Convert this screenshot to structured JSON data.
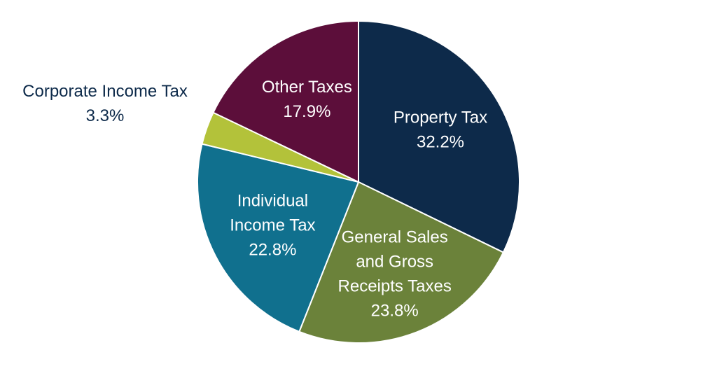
{
  "chart_data": {
    "type": "pie",
    "title": "",
    "slices": [
      {
        "label_lines": [
          "Property Tax"
        ],
        "value": 32.2,
        "display": "32.2%",
        "color": "#0d2a4a"
      },
      {
        "label_lines": [
          "General Sales",
          "and Gross",
          "Receipts Taxes"
        ],
        "value": 23.8,
        "display": "23.8%",
        "color": "#6b823a"
      },
      {
        "label_lines": [
          "Individual",
          "Income Tax"
        ],
        "value": 22.8,
        "display": "22.8%",
        "color": "#10708e"
      },
      {
        "label_lines": [
          "Corporate Income Tax"
        ],
        "value": 3.3,
        "display": "3.3%",
        "color": "#b3c23a",
        "label_outside": true
      },
      {
        "label_lines": [
          "Other Taxes"
        ],
        "value": 17.9,
        "display": "17.9%",
        "color": "#5c0e3a"
      }
    ],
    "start_position": "12 o'clock",
    "direction": "clockwise",
    "legend": "none",
    "inside_label_color": "#ffffff",
    "outside_label_color": "#0d2a4a"
  }
}
